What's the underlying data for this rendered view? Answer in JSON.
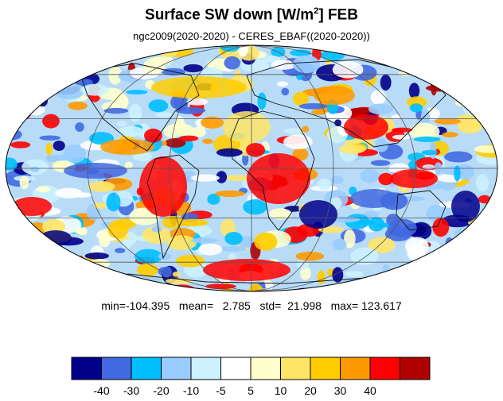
{
  "title": {
    "main": "Surface SW down [W/m",
    "sup": "2",
    "tail": "]  FEB"
  },
  "subtitle": "ngc2009(2020-2020) - CERES_EBAF((2020-2020))",
  "stats": {
    "text": "min=-104.395   mean=   2.785   std=  21.998   max= 123.617",
    "min": -104.395,
    "mean": 2.785,
    "std": 21.998,
    "max": 123.617
  },
  "map": {
    "projection": "mollweide",
    "grid_lines": true,
    "coastlines": true
  },
  "colorbar": {
    "colors": [
      "#00008b",
      "#4169e1",
      "#00bfff",
      "#99ccff",
      "#ccf2ff",
      "#ffffff",
      "#ffffcc",
      "#ffe566",
      "#ffcc00",
      "#ff9900",
      "#ff0000",
      "#b00000"
    ],
    "tick_labels": [
      "-40",
      "-30",
      "-20",
      "-10",
      "-5",
      "5",
      "10",
      "20",
      "30",
      "40"
    ],
    "levels": [
      -40,
      -30,
      -20,
      -10,
      -5,
      5,
      10,
      20,
      30,
      40
    ]
  }
}
